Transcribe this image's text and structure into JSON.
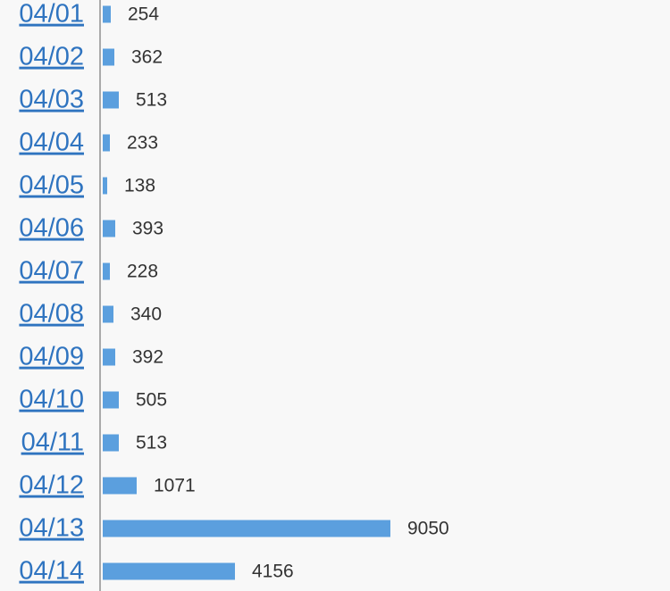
{
  "colors": {
    "background": "#f8f8f8",
    "bar": "#5b9fde",
    "axis": "#aaaaaa",
    "link": "#2f74c0",
    "value_text": "#333333"
  },
  "chart_data": {
    "type": "bar",
    "orientation": "horizontal",
    "title": "",
    "xlabel": "",
    "ylabel": "",
    "categories": [
      "04/01",
      "04/02",
      "04/03",
      "04/04",
      "04/05",
      "04/06",
      "04/07",
      "04/08",
      "04/09",
      "04/10",
      "04/11",
      "04/12",
      "04/13",
      "04/14"
    ],
    "values": [
      254,
      362,
      513,
      233,
      138,
      393,
      228,
      340,
      392,
      505,
      513,
      1071,
      9050,
      4156
    ],
    "grid": false,
    "legend": "none"
  }
}
